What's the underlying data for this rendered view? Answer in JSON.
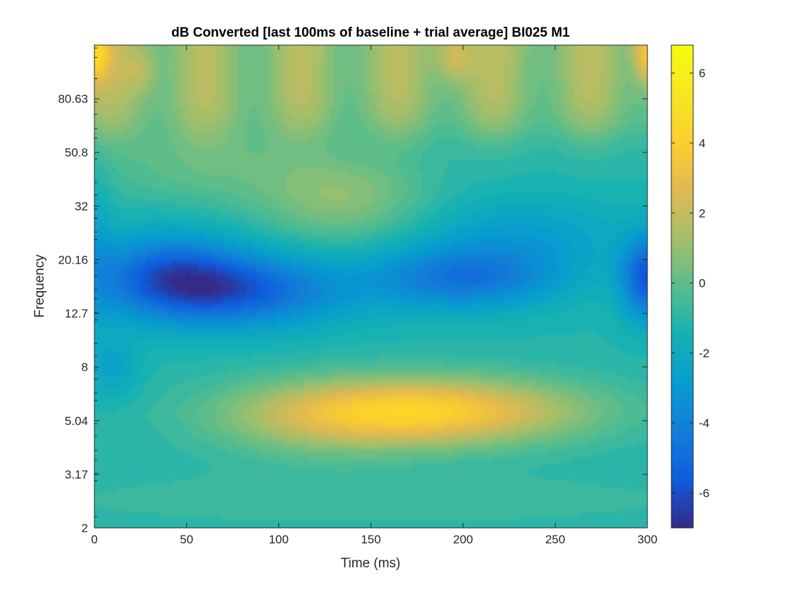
{
  "chart_data": {
    "type": "heatmap",
    "title": "dB Converted [last 100ms of baseline + trial average] BI025 M1",
    "xlabel": "Time (ms)",
    "ylabel": "Frequency",
    "xlim": [
      0,
      300
    ],
    "x_ticks": [
      0,
      50,
      100,
      150,
      200,
      250,
      300
    ],
    "x_tick_labels": [
      "0",
      "50",
      "100",
      "150",
      "200",
      "250",
      "300"
    ],
    "y_scale": "log",
    "ylim": [
      2,
      128
    ],
    "y_ticks": [
      2,
      3.17,
      5.04,
      8,
      12.7,
      20.16,
      32,
      50.8,
      80.63
    ],
    "y_tick_labels": [
      "2",
      "3.17",
      "5.04",
      "8",
      "12.7",
      "20.16",
      "32",
      "50.8",
      "80.63"
    ],
    "colormap": "parula",
    "colorbar": {
      "clim": [
        -7,
        6.8
      ],
      "ticks": [
        -6,
        -4,
        -2,
        0,
        2,
        4,
        6
      ],
      "tick_labels": [
        "-6",
        "-4",
        "-2",
        "0",
        "2",
        "4",
        "6"
      ]
    },
    "grid": false,
    "features": [
      {
        "description": "positive band",
        "time_center": 175,
        "freq_center": 5.5,
        "peak_db": 4.0
      },
      {
        "description": "negative band",
        "time_center": 75,
        "freq_center": 15.5,
        "peak_db": -6.0
      },
      {
        "description": "negative band",
        "time_center": 200,
        "freq_center": 17,
        "peak_db": -5.0
      },
      {
        "description": "negative edge",
        "time_center": 300,
        "freq_center": 17,
        "peak_db": -6.0
      },
      {
        "description": "high-frequency edge",
        "time_center": 300,
        "freq_center": 120,
        "peak_db": 5.5
      }
    ]
  }
}
